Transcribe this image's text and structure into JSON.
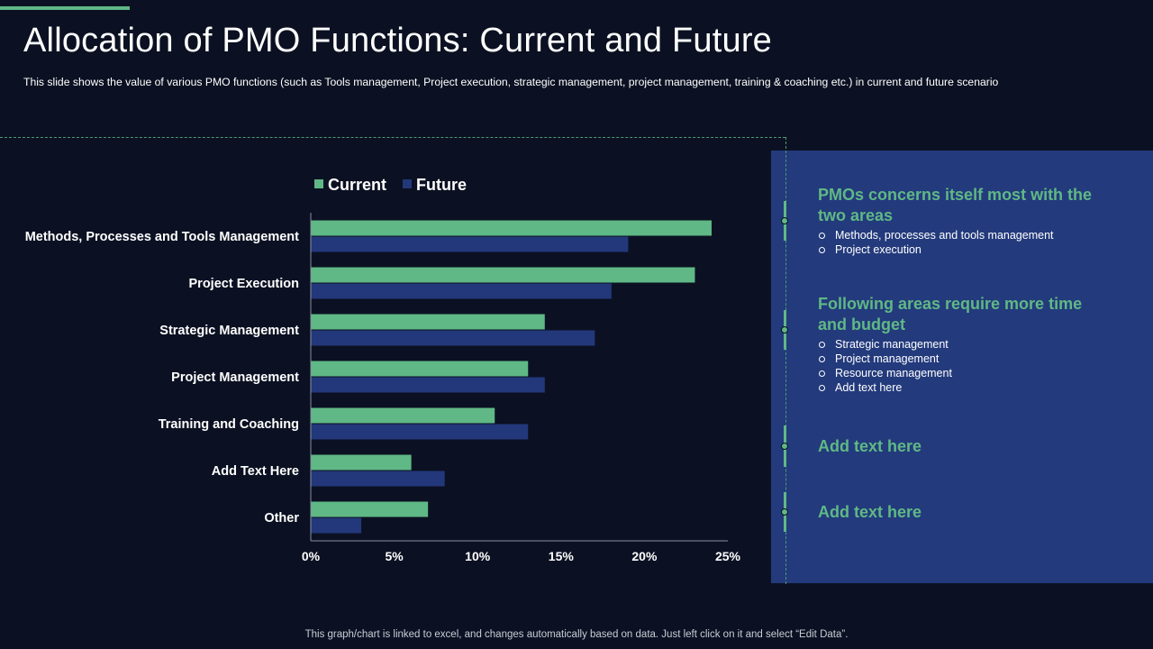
{
  "page": {
    "title": "Allocation of PMO Functions: Current and Future",
    "subtitle": "This slide shows the value of various  PMO functions (such as Tools management,  Project execution, strategic management,  project management,  training & coaching etc.) in current  and future  scenario",
    "footer": "This graph/chart is linked to excel,  and changes automatically based on data.  Just left click on it and select “Edit Data”."
  },
  "colors": {
    "current": "#5fb885",
    "future": "#23387a",
    "panel": "#233a7c",
    "background": "#0b1122"
  },
  "chart_data": {
    "type": "bar",
    "orientation": "horizontal",
    "title": "",
    "categories": [
      "Methods, Processes and Tools Management",
      "Project Execution",
      "Strategic Management",
      "Project Management",
      "Training and Coaching",
      "Add Text Here",
      "Other"
    ],
    "series": [
      {
        "name": "Current",
        "color": "#5fb885",
        "values": [
          24,
          23,
          14,
          13,
          11,
          6,
          7
        ]
      },
      {
        "name": "Future",
        "color": "#23387a",
        "values": [
          19,
          18,
          17,
          14,
          13,
          8,
          3
        ]
      }
    ],
    "xlim": [
      0,
      25
    ],
    "xticks": [
      "0%",
      "5%",
      "10%",
      "15%",
      "20%",
      "25%"
    ],
    "xtick_values": [
      0,
      5,
      10,
      15,
      20,
      25
    ],
    "value_unit": "%",
    "legend_position": "top",
    "grid": false
  },
  "sidebar": {
    "sections": [
      {
        "heading": "PMOs concerns itself most with the two areas",
        "items": [
          "Methods, processes and tools management",
          "Project execution"
        ]
      },
      {
        "heading": "Following areas require more time and budget",
        "items": [
          "Strategic management",
          "Project management",
          "Resource management",
          "Add text here"
        ]
      },
      {
        "heading": "Add text here",
        "items": []
      },
      {
        "heading": "Add text here",
        "items": []
      }
    ]
  }
}
